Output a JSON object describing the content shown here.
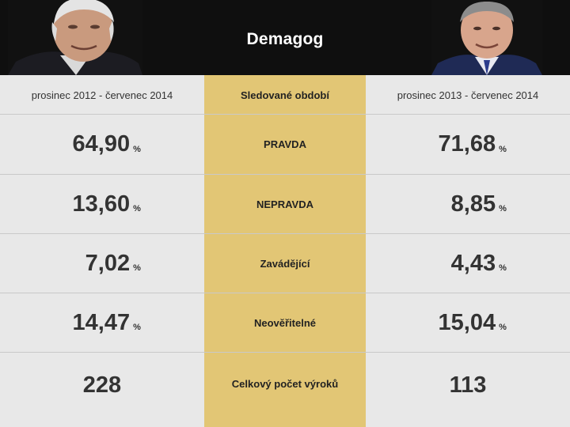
{
  "header": {
    "brand": "Demagog"
  },
  "columns": {
    "left_period": "prosinec 2012 - červenec 2014",
    "middle_header": "Sledované období",
    "right_period": "prosinec 2013 - červenec 2014"
  },
  "rows": [
    {
      "label": "PRAVDA",
      "left_value": "64,90",
      "left_unit": "%",
      "right_value": "71,68",
      "right_unit": "%"
    },
    {
      "label": "NEPRAVDA",
      "left_value": "13,60",
      "left_unit": "%",
      "right_value": "8,85",
      "right_unit": "%"
    },
    {
      "label": "Zavádějící",
      "left_value": "7,02",
      "left_unit": "%",
      "right_value": "4,43",
      "right_unit": "%"
    },
    {
      "label": "Neověřitelné",
      "left_value": "14,47",
      "left_unit": "%",
      "right_value": "15,04",
      "right_unit": "%"
    }
  ],
  "total": {
    "label": "Celkový počet výroků",
    "left_value": "228",
    "right_value": "113"
  },
  "colors": {
    "header_bg": "#0f0f0f",
    "center_band": "#e2c675",
    "body_bg": "#e8e8e8"
  }
}
